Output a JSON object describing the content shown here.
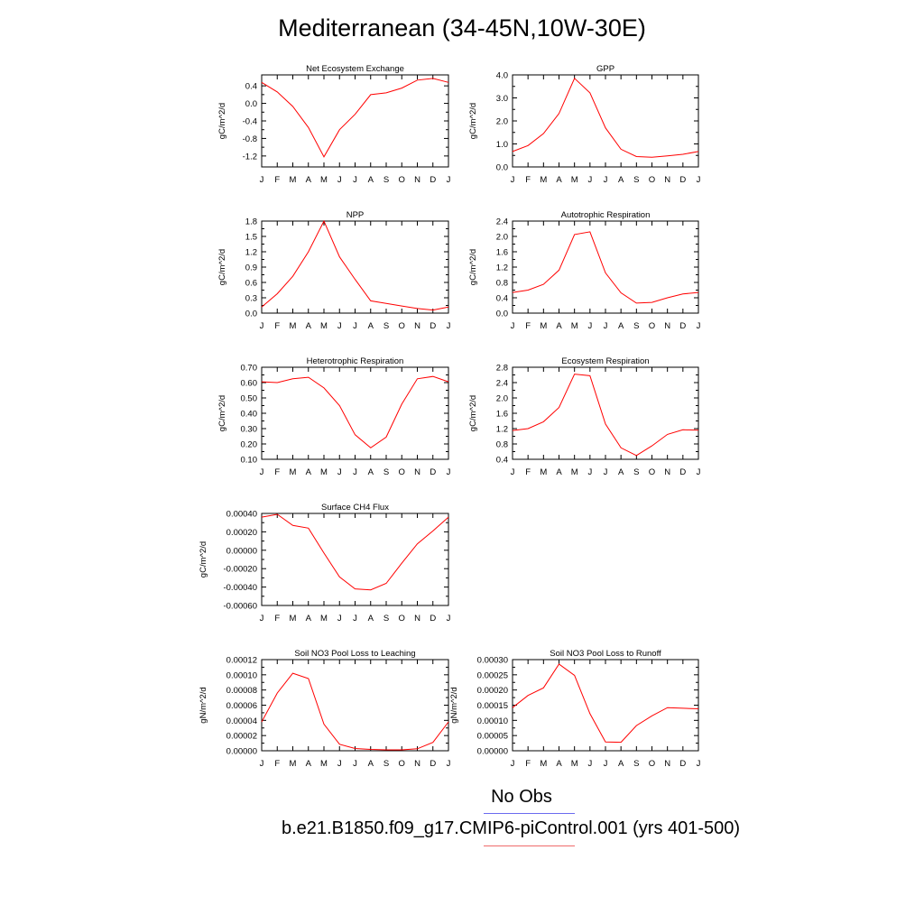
{
  "title": "Mediterranean (34-45N,10W-30E)",
  "legend": {
    "obs_label": "No Obs",
    "obs_color": "#6b6bf0",
    "model_label": "b.e21.B1850.f09_g17.CMIP6-piControl.001 (yrs 401-500)",
    "model_color": "#f06b6b"
  },
  "chart_data": [
    {
      "type": "line",
      "title": "Net Ecosystem Exchange",
      "ylabel": "gC/m^2/d",
      "x": [
        "J",
        "F",
        "M",
        "A",
        "M",
        "J",
        "J",
        "A",
        "S",
        "O",
        "N",
        "D",
        "J"
      ],
      "ylim": [
        -1.45,
        0.65
      ],
      "yticks": [
        "0.4",
        "0.0",
        "-0.4",
        "-0.8",
        "-1.2"
      ],
      "ytick_values": [
        0.4,
        0.0,
        -0.4,
        -0.8,
        -1.2
      ],
      "series": [
        {
          "color": "#ff0000",
          "values": [
            0.48,
            0.26,
            -0.07,
            -0.55,
            -1.22,
            -0.6,
            -0.25,
            0.2,
            0.24,
            0.35,
            0.53,
            0.57,
            0.48
          ]
        }
      ]
    },
    {
      "type": "line",
      "title": "GPP",
      "ylabel": "gC/m^2/d",
      "x": [
        "J",
        "F",
        "M",
        "A",
        "M",
        "J",
        "J",
        "A",
        "S",
        "O",
        "N",
        "D",
        "J"
      ],
      "ylim": [
        0.0,
        4.0
      ],
      "yticks": [
        "4.0",
        "3.0",
        "2.0",
        "1.0",
        "0.0"
      ],
      "ytick_values": [
        4.0,
        3.0,
        2.0,
        1.0,
        0.0
      ],
      "series": [
        {
          "color": "#ff0000",
          "values": [
            0.67,
            0.93,
            1.45,
            2.32,
            3.85,
            3.22,
            1.7,
            0.77,
            0.45,
            0.42,
            0.48,
            0.55,
            0.67
          ]
        }
      ]
    },
    {
      "type": "line",
      "title": "NPP",
      "ylabel": "gC/m^2/d",
      "x": [
        "J",
        "F",
        "M",
        "A",
        "M",
        "J",
        "J",
        "A",
        "S",
        "O",
        "N",
        "D",
        "J"
      ],
      "ylim": [
        0.0,
        1.8
      ],
      "yticks": [
        "1.8",
        "1.5",
        "1.2",
        "0.9",
        "0.6",
        "0.3",
        "0.0"
      ],
      "ytick_values": [
        1.8,
        1.5,
        1.2,
        0.9,
        0.6,
        0.3,
        0.0
      ],
      "series": [
        {
          "color": "#ff0000",
          "values": [
            0.12,
            0.38,
            0.72,
            1.2,
            1.8,
            1.1,
            0.66,
            0.24,
            0.19,
            0.14,
            0.09,
            0.06,
            0.12
          ]
        }
      ]
    },
    {
      "type": "line",
      "title": "Autotrophic Respiration",
      "ylabel": "gC/m^2/d",
      "x": [
        "J",
        "F",
        "M",
        "A",
        "M",
        "J",
        "J",
        "A",
        "S",
        "O",
        "N",
        "D",
        "J"
      ],
      "ylim": [
        0.0,
        2.4
      ],
      "yticks": [
        "2.4",
        "2.0",
        "1.6",
        "1.2",
        "0.8",
        "0.4",
        "0.0"
      ],
      "ytick_values": [
        2.4,
        2.0,
        1.6,
        1.2,
        0.8,
        0.4,
        0.0
      ],
      "series": [
        {
          "color": "#ff0000",
          "values": [
            0.54,
            0.6,
            0.75,
            1.12,
            2.05,
            2.12,
            1.05,
            0.53,
            0.26,
            0.28,
            0.4,
            0.5,
            0.54
          ]
        }
      ]
    },
    {
      "type": "line",
      "title": "Heterotrophic Respiration",
      "ylabel": "gC/m^2/d",
      "x": [
        "J",
        "F",
        "M",
        "A",
        "M",
        "J",
        "J",
        "A",
        "S",
        "O",
        "N",
        "D",
        "J"
      ],
      "ylim": [
        0.1,
        0.7
      ],
      "yticks": [
        "0.70",
        "0.60",
        "0.50",
        "0.40",
        "0.30",
        "0.20",
        "0.10"
      ],
      "ytick_values": [
        0.7,
        0.6,
        0.5,
        0.4,
        0.3,
        0.2,
        0.1
      ],
      "series": [
        {
          "color": "#ff0000",
          "values": [
            0.605,
            0.6,
            0.625,
            0.635,
            0.565,
            0.45,
            0.26,
            0.175,
            0.245,
            0.46,
            0.625,
            0.64,
            0.605
          ]
        }
      ]
    },
    {
      "type": "line",
      "title": "Ecosystem Respiration",
      "ylabel": "gC/m^2/d",
      "x": [
        "J",
        "F",
        "M",
        "A",
        "M",
        "J",
        "J",
        "A",
        "S",
        "O",
        "N",
        "D",
        "J"
      ],
      "ylim": [
        0.4,
        2.8
      ],
      "yticks": [
        "2.8",
        "2.4",
        "2.0",
        "1.6",
        "1.2",
        "0.8",
        "0.4"
      ],
      "ytick_values": [
        2.8,
        2.4,
        2.0,
        1.6,
        1.2,
        0.8,
        0.4
      ],
      "series": [
        {
          "color": "#ff0000",
          "values": [
            1.15,
            1.2,
            1.38,
            1.75,
            2.62,
            2.58,
            1.32,
            0.7,
            0.5,
            0.75,
            1.05,
            1.17,
            1.16
          ]
        }
      ]
    },
    {
      "type": "line",
      "title": "Surface CH4 Flux",
      "ylabel": "gC/m^2/d",
      "x": [
        "J",
        "F",
        "M",
        "A",
        "M",
        "J",
        "J",
        "A",
        "S",
        "O",
        "N",
        "D",
        "J"
      ],
      "ylim": [
        -0.0006,
        0.0004
      ],
      "yticks": [
        "0.00040",
        "0.00020",
        "0.00000",
        "-0.00020",
        "-0.00040",
        "-0.00060"
      ],
      "ytick_values": [
        0.0004,
        0.0002,
        0.0,
        -0.0002,
        -0.0004,
        -0.0006
      ],
      "series": [
        {
          "color": "#ff0000",
          "values": [
            0.00036,
            0.00039,
            0.00027,
            0.00024,
            -3e-05,
            -0.00029,
            -0.00042,
            -0.00043,
            -0.00036,
            -0.00014,
            7e-05,
            0.00021,
            0.00036
          ]
        }
      ]
    },
    {
      "type": "line",
      "title": "Soil NO3 Pool Loss to Leaching",
      "ylabel": "gN/m^2/d",
      "x": [
        "J",
        "F",
        "M",
        "A",
        "M",
        "J",
        "J",
        "A",
        "S",
        "O",
        "N",
        "D",
        "J"
      ],
      "ylim": [
        0.0,
        0.00012
      ],
      "yticks": [
        "0.00012",
        "0.00010",
        "0.00008",
        "0.00006",
        "0.00004",
        "0.00002",
        "0.00000"
      ],
      "ytick_values": [
        0.00012,
        0.0001,
        8e-05,
        6e-05,
        4e-05,
        2e-05,
        0.0
      ],
      "series": [
        {
          "color": "#ff0000",
          "values": [
            3.8e-05,
            7.6e-05,
            0.000102,
            9.5e-05,
            3.5e-05,
            8.5e-06,
            3e-06,
            1.8e-06,
            1.2e-06,
            1.2e-06,
            2.6e-06,
            1.1e-05,
            3.8e-05
          ]
        }
      ]
    },
    {
      "type": "line",
      "title": "Soil NO3 Pool Loss to Runoff",
      "ylabel": "gN/m^2/d",
      "x": [
        "J",
        "F",
        "M",
        "A",
        "M",
        "J",
        "J",
        "A",
        "S",
        "O",
        "N",
        "D",
        "J"
      ],
      "ylim": [
        0.0,
        0.0003
      ],
      "yticks": [
        "0.00030",
        "0.00025",
        "0.00020",
        "0.00015",
        "0.00010",
        "0.00005",
        "0.00000"
      ],
      "ytick_values": [
        0.0003,
        0.00025,
        0.0002,
        0.00015,
        0.0001,
        5e-05,
        0.0
      ],
      "series": [
        {
          "color": "#ff0000",
          "values": [
            0.000142,
            0.000182,
            0.000207,
            0.000285,
            0.000248,
            0.000122,
            2.9e-05,
            2.8e-05,
            8.3e-05,
            0.000115,
            0.000142,
            0.00014,
            0.000138
          ]
        }
      ]
    }
  ]
}
